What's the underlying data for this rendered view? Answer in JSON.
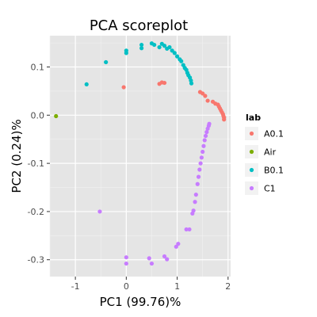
{
  "chart_data": {
    "type": "scatter",
    "title": "PCA scoreplot",
    "xlabel": "PC1 (99.76)%",
    "ylabel": "PC2 (0.24)%",
    "xlim": [
      -1.5,
      2.05
    ],
    "ylim": [
      -0.335,
      0.165
    ],
    "x_ticks": [
      -1,
      0,
      1,
      2
    ],
    "y_ticks": [
      -0.3,
      -0.2,
      -0.1,
      0.0,
      0.1
    ],
    "x_tick_labels": [
      "-1",
      "0",
      "1",
      "2"
    ],
    "y_tick_labels": [
      "-0.3",
      "-0.2",
      "-0.1",
      "0.0",
      "0.1"
    ],
    "grid": true,
    "legend": {
      "title": "lab",
      "placement": "right"
    },
    "series": [
      {
        "name": "A0.1",
        "color": "#F8766D",
        "points": [
          [
            -0.05,
            0.058
          ],
          [
            0.65,
            0.065
          ],
          [
            0.7,
            0.068
          ],
          [
            0.75,
            0.067
          ],
          [
            1.45,
            0.048
          ],
          [
            1.5,
            0.045
          ],
          [
            1.55,
            0.04
          ],
          [
            1.6,
            0.03
          ],
          [
            1.7,
            0.028
          ],
          [
            1.75,
            0.024
          ],
          [
            1.8,
            0.022
          ],
          [
            1.82,
            0.018
          ],
          [
            1.84,
            0.014
          ],
          [
            1.86,
            0.01
          ],
          [
            1.88,
            0.006
          ],
          [
            1.9,
            0.002
          ],
          [
            1.91,
            -0.002
          ],
          [
            1.92,
            -0.005
          ],
          [
            1.92,
            -0.009
          ]
        ]
      },
      {
        "name": "Air",
        "color": "#7CAE00",
        "points": [
          [
            -1.38,
            -0.002
          ]
        ]
      },
      {
        "name": "B0.1",
        "color": "#00BFC4",
        "points": [
          [
            -0.78,
            0.064
          ],
          [
            -0.4,
            0.11
          ],
          [
            0.0,
            0.129
          ],
          [
            0.0,
            0.134
          ],
          [
            0.3,
            0.139
          ],
          [
            0.3,
            0.146
          ],
          [
            0.5,
            0.149
          ],
          [
            0.55,
            0.146
          ],
          [
            0.65,
            0.141
          ],
          [
            0.7,
            0.148
          ],
          [
            0.75,
            0.144
          ],
          [
            0.8,
            0.138
          ],
          [
            0.85,
            0.141
          ],
          [
            0.9,
            0.134
          ],
          [
            0.95,
            0.129
          ],
          [
            1.0,
            0.122
          ],
          [
            1.05,
            0.116
          ],
          [
            1.08,
            0.112
          ],
          [
            1.12,
            0.104
          ],
          [
            1.15,
            0.098
          ],
          [
            1.18,
            0.094
          ],
          [
            1.2,
            0.088
          ],
          [
            1.22,
            0.083
          ],
          [
            1.25,
            0.078
          ],
          [
            1.27,
            0.072
          ],
          [
            1.28,
            0.066
          ]
        ]
      },
      {
        "name": "C1",
        "color": "#C77CFF",
        "points": [
          [
            -0.52,
            -0.2
          ],
          [
            0.0,
            -0.295
          ],
          [
            0.0,
            -0.308
          ],
          [
            0.45,
            -0.297
          ],
          [
            0.5,
            -0.308
          ],
          [
            0.75,
            -0.293
          ],
          [
            0.8,
            -0.299
          ],
          [
            0.98,
            -0.273
          ],
          [
            1.02,
            -0.267
          ],
          [
            1.18,
            -0.237
          ],
          [
            1.24,
            -0.237
          ],
          [
            1.3,
            -0.204
          ],
          [
            1.32,
            -0.198
          ],
          [
            1.35,
            -0.18
          ],
          [
            1.37,
            -0.165
          ],
          [
            1.4,
            -0.143
          ],
          [
            1.42,
            -0.128
          ],
          [
            1.44,
            -0.113
          ],
          [
            1.46,
            -0.1
          ],
          [
            1.48,
            -0.088
          ],
          [
            1.5,
            -0.076
          ],
          [
            1.52,
            -0.064
          ],
          [
            1.54,
            -0.052
          ],
          [
            1.56,
            -0.043
          ],
          [
            1.58,
            -0.035
          ],
          [
            1.6,
            -0.028
          ],
          [
            1.62,
            -0.022
          ],
          [
            1.63,
            -0.018
          ]
        ]
      }
    ]
  }
}
